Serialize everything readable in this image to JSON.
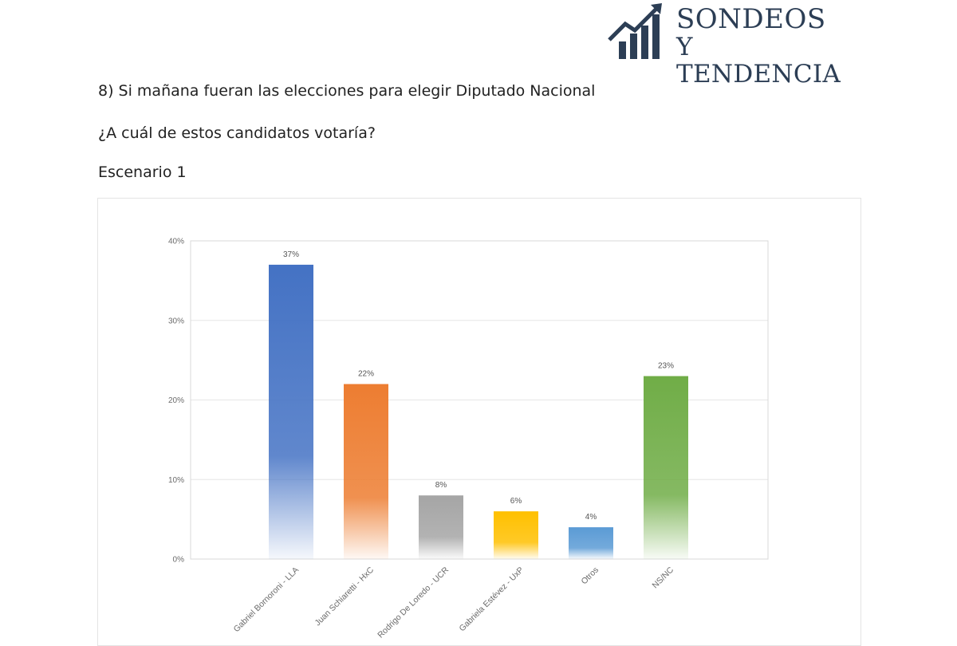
{
  "header": {
    "logo_line1": "SONDEOS",
    "logo_line2": "Y TENDENCIA",
    "logo_icon": "rising-bars-arrow-icon",
    "logo_color": "#2c3e55"
  },
  "question": {
    "line1": "8) Si mañana fueran las elecciones para elegir Diputado Nacional",
    "line2": "¿A cuál de estos candidatos votaría?",
    "scenario": "Escenario 1"
  },
  "chart_data": {
    "type": "bar",
    "categories": [
      "Gabriel Bornoroni - LLA",
      "Juan Schiaretti - HxC",
      "Rodrigo De Loredo - UCR",
      "Gabriela Estévez - UxP",
      "Otros",
      "NS/NC"
    ],
    "values": [
      37,
      22,
      8,
      6,
      4,
      23
    ],
    "value_labels": [
      "37%",
      "22%",
      "8%",
      "6%",
      "4%",
      "23%"
    ],
    "colors": [
      "#4472c4",
      "#ed7d31",
      "#a5a5a5",
      "#ffc000",
      "#5b9bd5",
      "#70ad47"
    ],
    "ylim": [
      0,
      40
    ],
    "yticks": [
      0,
      10,
      20,
      30,
      40
    ],
    "ytick_labels": [
      "0%",
      "10%",
      "20%",
      "30%",
      "40%"
    ],
    "grid": true,
    "title": "",
    "xlabel": "",
    "ylabel": ""
  }
}
